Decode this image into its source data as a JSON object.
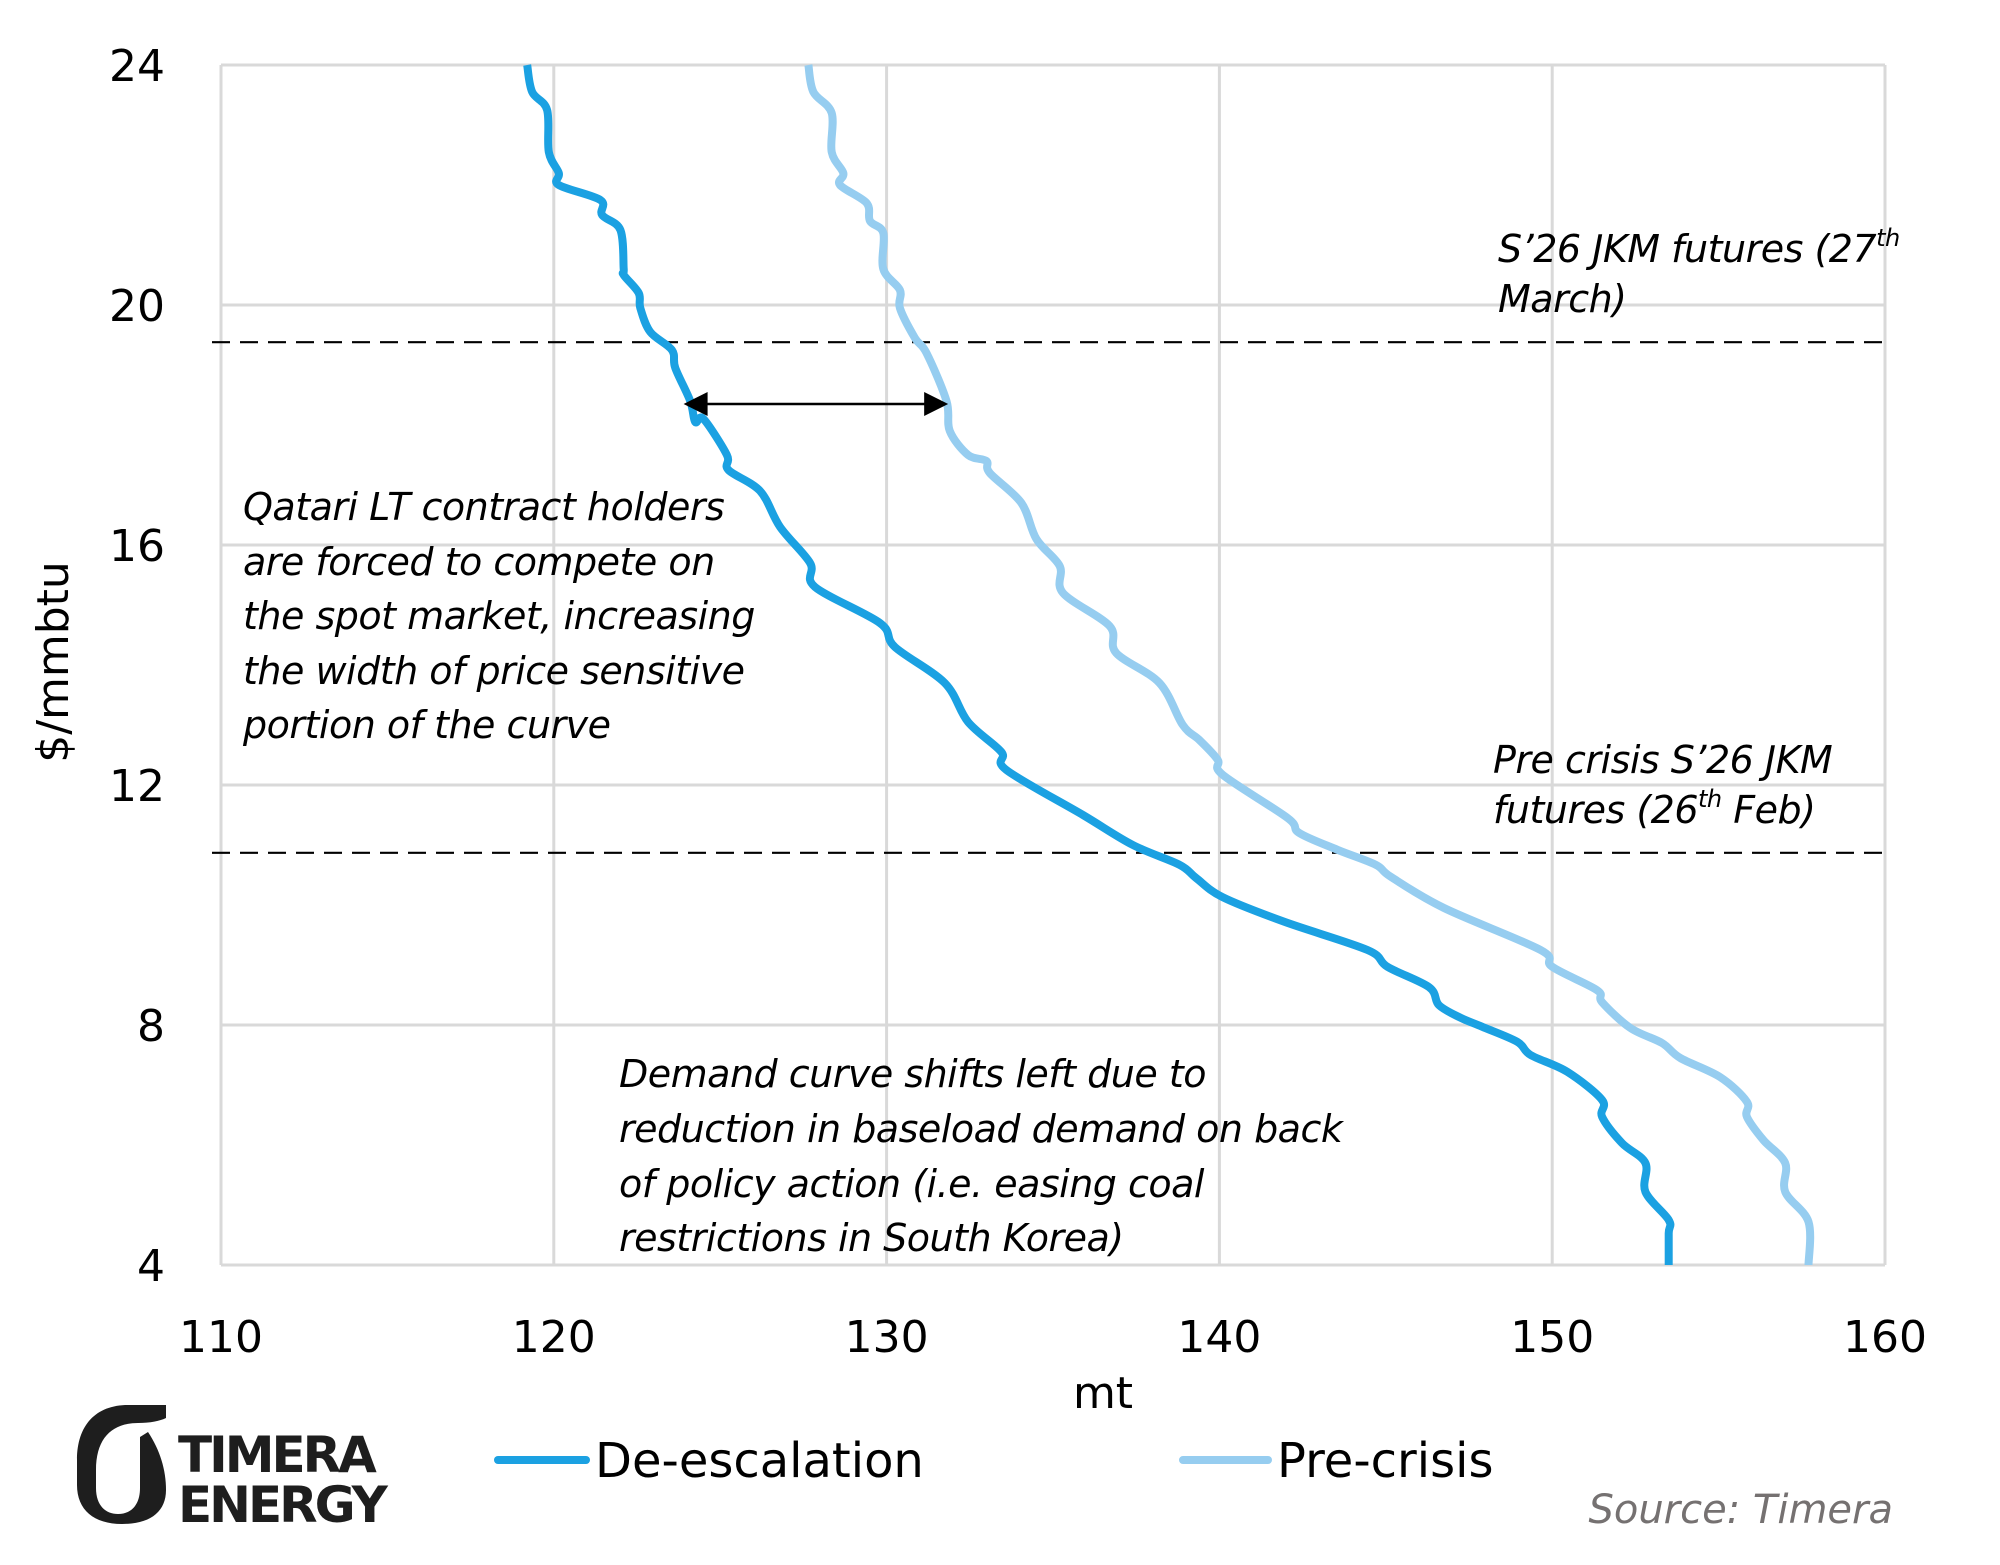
{
  "chart_data": {
    "type": "line",
    "title": "",
    "xlabel": "mt",
    "ylabel": "$/mmbtu",
    "xlim": [
      110,
      160
    ],
    "ylim": [
      4,
      24
    ],
    "x_ticks": [
      "110",
      "120",
      "130",
      "140",
      "150",
      "160"
    ],
    "y_ticks": [
      "4",
      "8",
      "12",
      "16",
      "20",
      "24"
    ],
    "x_tick_values": [
      110,
      120,
      130,
      140,
      150,
      160
    ],
    "y_tick_values": [
      4,
      8,
      12,
      16,
      20,
      24
    ],
    "grid": true,
    "legend_position": "bottom",
    "series": [
      {
        "name": "De-escalation",
        "color": "#1ba1e2",
        "points": [
          [
            119.2,
            24.0
          ],
          [
            119.35,
            23.55
          ],
          [
            119.8,
            23.25
          ],
          [
            119.85,
            22.55
          ],
          [
            120.15,
            22.2
          ],
          [
            120.15,
            22.0
          ],
          [
            121.4,
            21.75
          ],
          [
            121.45,
            21.5
          ],
          [
            122.0,
            21.25
          ],
          [
            122.1,
            20.6
          ],
          [
            122.1,
            20.5
          ],
          [
            122.55,
            20.2
          ],
          [
            122.6,
            19.95
          ],
          [
            122.9,
            19.55
          ],
          [
            123.55,
            19.25
          ],
          [
            123.65,
            18.95
          ],
          [
            124.1,
            18.4
          ],
          [
            124.25,
            18.05
          ],
          [
            124.5,
            18.1
          ],
          [
            125.2,
            17.5
          ],
          [
            125.25,
            17.25
          ],
          [
            126.2,
            16.9
          ],
          [
            126.8,
            16.3
          ],
          [
            127.7,
            15.7
          ],
          [
            127.85,
            15.3
          ],
          [
            129.8,
            14.7
          ],
          [
            130.25,
            14.3
          ],
          [
            131.75,
            13.7
          ],
          [
            132.45,
            13.05
          ],
          [
            133.45,
            12.55
          ],
          [
            133.6,
            12.25
          ],
          [
            135.9,
            11.5
          ],
          [
            137.4,
            11.0
          ],
          [
            138.8,
            10.67
          ],
          [
            139.3,
            10.45
          ],
          [
            140.1,
            10.13
          ],
          [
            141.95,
            9.72
          ],
          [
            144.45,
            9.25
          ],
          [
            145.05,
            8.97
          ],
          [
            146.3,
            8.63
          ],
          [
            146.6,
            8.33
          ],
          [
            147.25,
            8.12
          ],
          [
            147.9,
            7.97
          ],
          [
            148.95,
            7.72
          ],
          [
            149.35,
            7.5
          ],
          [
            150.45,
            7.22
          ],
          [
            151.5,
            6.75
          ],
          [
            151.5,
            6.47
          ],
          [
            152.1,
            6.03
          ],
          [
            152.8,
            5.7
          ],
          [
            152.8,
            5.22
          ],
          [
            153.5,
            4.75
          ],
          [
            153.5,
            4.53
          ],
          [
            153.5,
            4.0
          ]
        ]
      },
      {
        "name": "Pre-crisis",
        "color": "#96cdf0",
        "points": [
          [
            127.65,
            24.0
          ],
          [
            127.8,
            23.55
          ],
          [
            128.35,
            23.2
          ],
          [
            128.35,
            22.55
          ],
          [
            128.7,
            22.2
          ],
          [
            128.6,
            22.0
          ],
          [
            129.4,
            21.7
          ],
          [
            129.5,
            21.4
          ],
          [
            129.9,
            21.2
          ],
          [
            129.9,
            20.6
          ],
          [
            130.4,
            20.25
          ],
          [
            130.4,
            19.95
          ],
          [
            130.85,
            19.45
          ],
          [
            131.2,
            19.2
          ],
          [
            131.8,
            18.4
          ],
          [
            131.9,
            17.9
          ],
          [
            132.45,
            17.5
          ],
          [
            133.0,
            17.4
          ],
          [
            133.1,
            17.2
          ],
          [
            134.05,
            16.7
          ],
          [
            134.5,
            16.1
          ],
          [
            135.2,
            15.65
          ],
          [
            135.3,
            15.2
          ],
          [
            136.7,
            14.65
          ],
          [
            136.9,
            14.2
          ],
          [
            138.2,
            13.7
          ],
          [
            138.9,
            13.0
          ],
          [
            139.4,
            12.75
          ],
          [
            139.95,
            12.42
          ],
          [
            140.1,
            12.17
          ],
          [
            142.05,
            11.45
          ],
          [
            142.4,
            11.2
          ],
          [
            143.55,
            10.92
          ],
          [
            144.7,
            10.67
          ],
          [
            145.15,
            10.47
          ],
          [
            146.75,
            9.95
          ],
          [
            149.65,
            9.25
          ],
          [
            150.0,
            8.97
          ],
          [
            151.35,
            8.58
          ],
          [
            151.5,
            8.38
          ],
          [
            152.35,
            7.95
          ],
          [
            153.3,
            7.7
          ],
          [
            153.85,
            7.45
          ],
          [
            155.05,
            7.13
          ],
          [
            155.85,
            6.72
          ],
          [
            155.85,
            6.47
          ],
          [
            156.35,
            6.08
          ],
          [
            157.0,
            5.7
          ],
          [
            157.0,
            5.22
          ],
          [
            157.7,
            4.72
          ],
          [
            157.7,
            4.0
          ]
        ]
      }
    ],
    "reference_lines": [
      {
        "name": "S'26 JKM futures (27th March)",
        "y": 19.38,
        "style": "dashed"
      },
      {
        "name": "Pre crisis S'26 JKM futures (26th Feb)",
        "y": 10.87,
        "style": "dashed"
      }
    ],
    "arrow": {
      "y": 18.35,
      "x_from": 123.9,
      "x_to": 131.85,
      "style": "double-headed"
    },
    "annotations": {
      "jkm_march": {
        "line1": "S’26 JKM futures (27",
        "sup": "th",
        "line2": "March)"
      },
      "jkm_feb": {
        "line1": "Pre crisis S’26 JKM",
        "line2a": "futures (26",
        "sup": "th",
        "line2b": " Feb)"
      },
      "qatari": [
        "Qatari LT contract holders",
        "are forced to compete on",
        "the spot market, increasing",
        "the width of price sensitive",
        "portion of the curve"
      ],
      "demand": [
        "Demand curve shifts left due to",
        "reduction in baseload demand on back",
        "of policy action (i.e. easing coal",
        "restrictions in South Korea)"
      ]
    },
    "legend": [
      {
        "label": "De-escalation",
        "color": "#1ba1e2"
      },
      {
        "label": "Pre-crisis",
        "color": "#96cdf0"
      }
    ]
  },
  "branding": {
    "logo_line1": "TIMERA",
    "logo_line2": "ENERGY",
    "source": "Source: Timera"
  },
  "colors": {
    "grid": "#d9d9d9",
    "text": "#000000",
    "source_text": "#757171",
    "logo": "#1e1e1e"
  }
}
